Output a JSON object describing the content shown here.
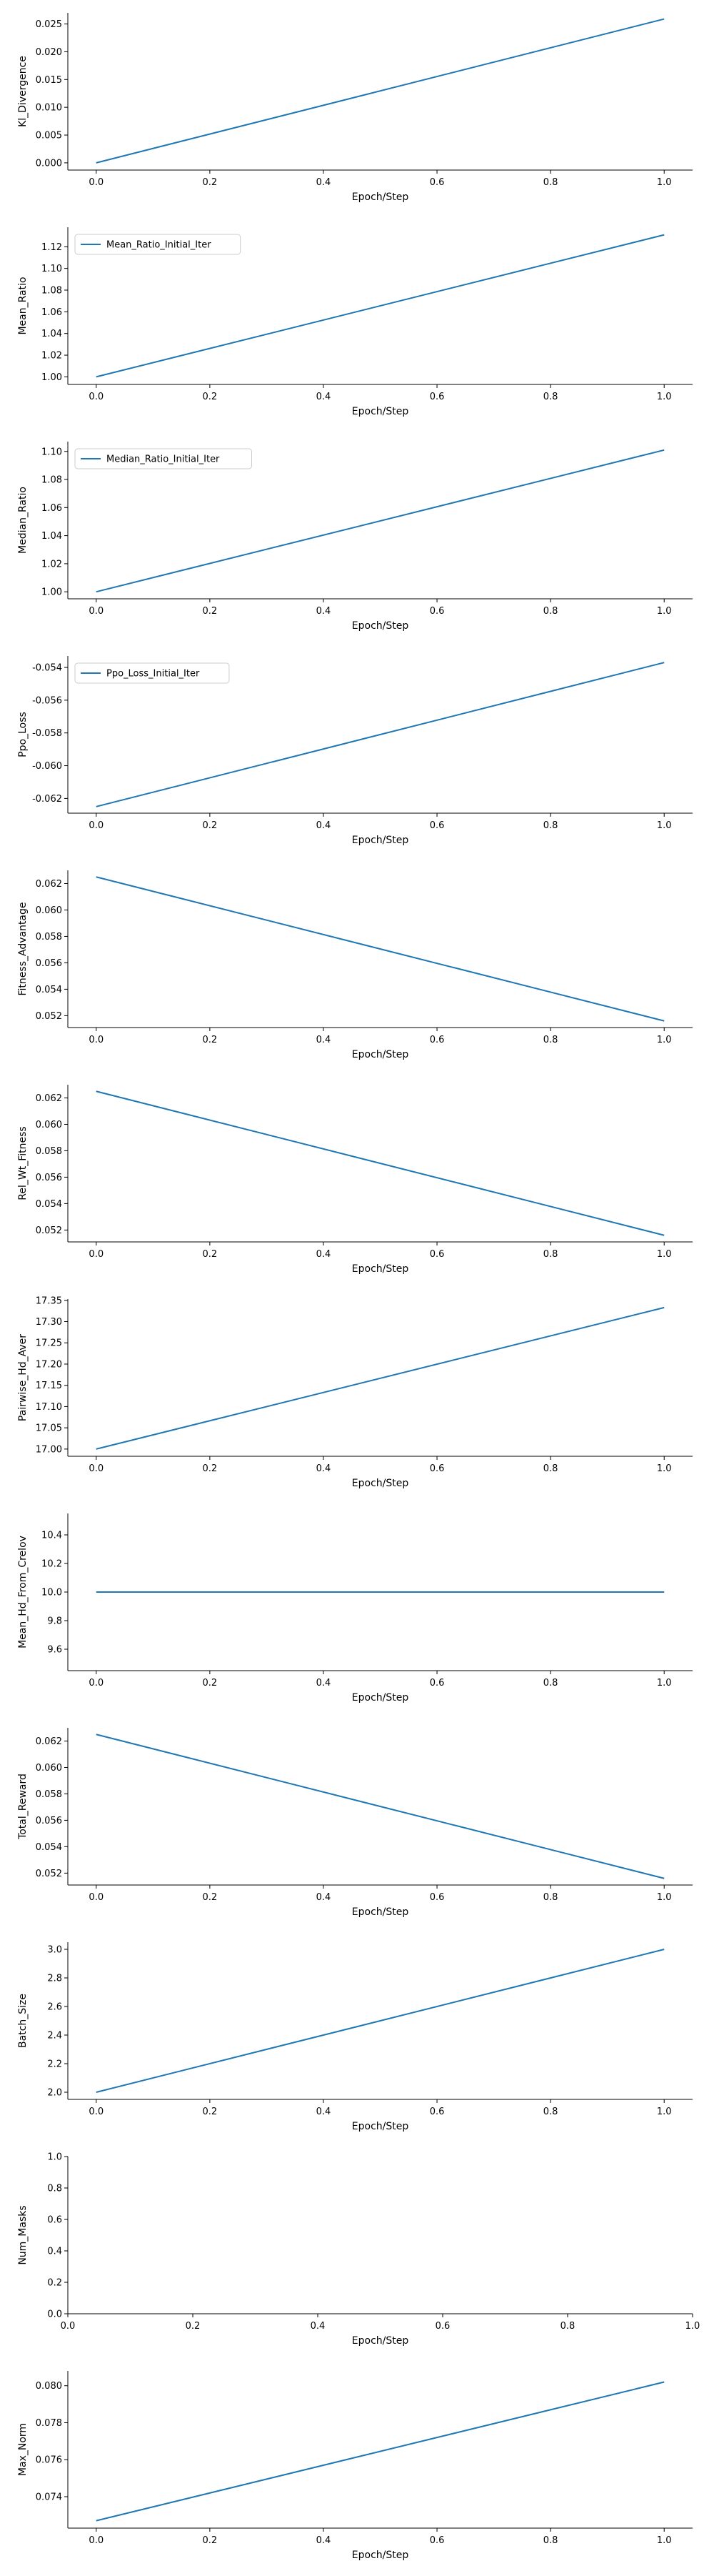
{
  "figure": {
    "background": "#ffffff",
    "line_color": "#1f77b4"
  },
  "chart_data": [
    {
      "type": "line",
      "xlabel": "Epoch/Step",
      "ylabel": "Kl_Divergence",
      "xlim": [
        -0.05,
        1.05
      ],
      "ylim": [
        -0.0013,
        0.027
      ],
      "xticks": [
        "0.0",
        "0.2",
        "0.4",
        "0.6",
        "0.8",
        "1.0"
      ],
      "yticks": [
        "0.000",
        "0.005",
        "0.010",
        "0.015",
        "0.020",
        "0.025"
      ],
      "ytick_values": [
        0,
        0.005,
        0.01,
        0.015,
        0.02,
        0.025
      ],
      "legend": null,
      "series": [
        {
          "x": [
            0,
            1
          ],
          "y": [
            0.0,
            0.0259
          ]
        }
      ]
    },
    {
      "type": "line",
      "xlabel": "Epoch/Step",
      "ylabel": "Mean_Ratio",
      "xlim": [
        -0.05,
        1.05
      ],
      "ylim": [
        0.993,
        1.138
      ],
      "xticks": [
        "0.0",
        "0.2",
        "0.4",
        "0.6",
        "0.8",
        "1.0"
      ],
      "yticks": [
        "1.00",
        "1.02",
        "1.04",
        "1.06",
        "1.08",
        "1.10",
        "1.12"
      ],
      "ytick_values": [
        1.0,
        1.02,
        1.04,
        1.06,
        1.08,
        1.1,
        1.12
      ],
      "legend": {
        "text": "Mean_Ratio_Initial_Iter",
        "loc": "upper left"
      },
      "series": [
        {
          "name": "Mean_Ratio_Initial_Iter",
          "x": [
            0,
            1
          ],
          "y": [
            1.0,
            1.131
          ]
        }
      ]
    },
    {
      "type": "line",
      "xlabel": "Epoch/Step",
      "ylabel": "Median_Ratio",
      "xlim": [
        -0.05,
        1.05
      ],
      "ylim": [
        0.995,
        1.107
      ],
      "xticks": [
        "0.0",
        "0.2",
        "0.4",
        "0.6",
        "0.8",
        "1.0"
      ],
      "yticks": [
        "1.00",
        "1.02",
        "1.04",
        "1.06",
        "1.08",
        "1.10"
      ],
      "ytick_values": [
        1.0,
        1.02,
        1.04,
        1.06,
        1.08,
        1.1
      ],
      "legend": {
        "text": "Median_Ratio_Initial_Iter",
        "loc": "upper left"
      },
      "series": [
        {
          "name": "Median_Ratio_Initial_Iter",
          "x": [
            0,
            1
          ],
          "y": [
            1.0,
            1.101
          ]
        }
      ]
    },
    {
      "type": "line",
      "xlabel": "Epoch/Step",
      "ylabel": "Ppo_Loss",
      "xlim": [
        -0.05,
        1.05
      ],
      "ylim": [
        -0.0629,
        -0.0533
      ],
      "xticks": [
        "0.0",
        "0.2",
        "0.4",
        "0.6",
        "0.8",
        "1.0"
      ],
      "yticks": [
        "-0.062",
        "-0.060",
        "-0.058",
        "-0.056",
        "-0.054"
      ],
      "ytick_values": [
        -0.062,
        -0.06,
        -0.058,
        -0.056,
        -0.054
      ],
      "legend": {
        "text": "Ppo_Loss_Initial_Iter",
        "loc": "upper left"
      },
      "series": [
        {
          "name": "Ppo_Loss_Initial_Iter",
          "x": [
            0,
            1
          ],
          "y": [
            -0.0625,
            -0.0537
          ]
        }
      ]
    },
    {
      "type": "line",
      "xlabel": "Epoch/Step",
      "ylabel": "Fitness_Advantage",
      "xlim": [
        -0.05,
        1.05
      ],
      "ylim": [
        0.0511,
        0.063
      ],
      "xticks": [
        "0.0",
        "0.2",
        "0.4",
        "0.6",
        "0.8",
        "1.0"
      ],
      "yticks": [
        "0.052",
        "0.054",
        "0.056",
        "0.058",
        "0.060",
        "0.062"
      ],
      "ytick_values": [
        0.052,
        0.054,
        0.056,
        0.058,
        0.06,
        0.062
      ],
      "legend": null,
      "series": [
        {
          "x": [
            0,
            1
          ],
          "y": [
            0.0625,
            0.0516
          ]
        }
      ]
    },
    {
      "type": "line",
      "xlabel": "Epoch/Step",
      "ylabel": "Rel_Wt_Fitness",
      "xlim": [
        -0.05,
        1.05
      ],
      "ylim": [
        0.0511,
        0.063
      ],
      "xticks": [
        "0.0",
        "0.2",
        "0.4",
        "0.6",
        "0.8",
        "1.0"
      ],
      "yticks": [
        "0.052",
        "0.054",
        "0.056",
        "0.058",
        "0.060",
        "0.062"
      ],
      "ytick_values": [
        0.052,
        0.054,
        0.056,
        0.058,
        0.06,
        0.062
      ],
      "legend": null,
      "series": [
        {
          "x": [
            0,
            1
          ],
          "y": [
            0.0625,
            0.0516
          ]
        }
      ]
    },
    {
      "type": "line",
      "xlabel": "Epoch/Step",
      "ylabel": "Pairwise_Hd_Aver",
      "xlim": [
        -0.05,
        1.05
      ],
      "ylim": [
        16.983,
        17.353
      ],
      "xticks": [
        "0.0",
        "0.2",
        "0.4",
        "0.6",
        "0.8",
        "1.0"
      ],
      "yticks": [
        "17.00",
        "17.05",
        "17.10",
        "17.15",
        "17.20",
        "17.25",
        "17.30",
        "17.35"
      ],
      "ytick_values": [
        17.0,
        17.05,
        17.1,
        17.15,
        17.2,
        17.25,
        17.3,
        17.35
      ],
      "legend": null,
      "series": [
        {
          "x": [
            0,
            1
          ],
          "y": [
            17.0,
            17.333
          ]
        }
      ]
    },
    {
      "type": "line",
      "xlabel": "Epoch/Step",
      "ylabel": "Mean_Hd_From_Crelov",
      "xlim": [
        -0.05,
        1.05
      ],
      "ylim": [
        9.45,
        10.55
      ],
      "xticks": [
        "0.0",
        "0.2",
        "0.4",
        "0.6",
        "0.8",
        "1.0"
      ],
      "yticks": [
        "9.6",
        "9.8",
        "10.0",
        "10.2",
        "10.4"
      ],
      "ytick_values": [
        9.6,
        9.8,
        10.0,
        10.2,
        10.4
      ],
      "legend": null,
      "series": [
        {
          "x": [
            0,
            1
          ],
          "y": [
            10.0,
            10.0
          ]
        }
      ]
    },
    {
      "type": "line",
      "xlabel": "Epoch/Step",
      "ylabel": "Total_Reward",
      "xlim": [
        -0.05,
        1.05
      ],
      "ylim": [
        0.0511,
        0.063
      ],
      "xticks": [
        "0.0",
        "0.2",
        "0.4",
        "0.6",
        "0.8",
        "1.0"
      ],
      "yticks": [
        "0.052",
        "0.054",
        "0.056",
        "0.058",
        "0.060",
        "0.062"
      ],
      "ytick_values": [
        0.052,
        0.054,
        0.056,
        0.058,
        0.06,
        0.062
      ],
      "legend": null,
      "series": [
        {
          "x": [
            0,
            1
          ],
          "y": [
            0.0625,
            0.0516
          ]
        }
      ]
    },
    {
      "type": "line",
      "xlabel": "Epoch/Step",
      "ylabel": "Batch_Size",
      "xlim": [
        -0.05,
        1.05
      ],
      "ylim": [
        1.95,
        3.05
      ],
      "xticks": [
        "0.0",
        "0.2",
        "0.4",
        "0.6",
        "0.8",
        "1.0"
      ],
      "yticks": [
        "2.0",
        "2.2",
        "2.4",
        "2.6",
        "2.8",
        "3.0"
      ],
      "ytick_values": [
        2.0,
        2.2,
        2.4,
        2.6,
        2.8,
        3.0
      ],
      "legend": null,
      "series": [
        {
          "x": [
            0,
            1
          ],
          "y": [
            2.0,
            3.0
          ]
        }
      ]
    },
    {
      "type": "line",
      "xlabel": "Epoch/Step",
      "ylabel": "Num_Masks",
      "xlim": [
        0,
        1
      ],
      "ylim": [
        0,
        1
      ],
      "xticks": [
        "0.0",
        "0.2",
        "0.4",
        "0.6",
        "0.8",
        "1.0"
      ],
      "xtick_values": [
        0,
        0.2,
        0.4,
        0.6,
        0.8,
        1.0
      ],
      "yticks": [
        "0.0",
        "0.2",
        "0.4",
        "0.6",
        "0.8",
        "1.0"
      ],
      "ytick_values": [
        0,
        0.2,
        0.4,
        0.6,
        0.8,
        1.0
      ],
      "legend": null,
      "series": []
    },
    {
      "type": "line",
      "xlabel": "Epoch/Step",
      "ylabel": "Max_Norm",
      "xlim": [
        -0.05,
        1.05
      ],
      "ylim": [
        0.0723,
        0.0808
      ],
      "xticks": [
        "0.0",
        "0.2",
        "0.4",
        "0.6",
        "0.8",
        "1.0"
      ],
      "yticks": [
        "0.074",
        "0.076",
        "0.078",
        "0.080"
      ],
      "ytick_values": [
        0.074,
        0.076,
        0.078,
        0.08
      ],
      "legend": null,
      "series": [
        {
          "x": [
            0,
            1
          ],
          "y": [
            0.0727,
            0.0802
          ]
        }
      ]
    }
  ]
}
